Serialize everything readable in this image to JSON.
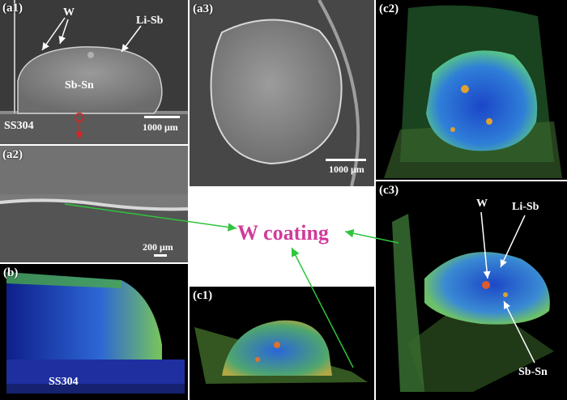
{
  "panels": {
    "a1": {
      "label": "(a1)",
      "w": "W",
      "lisb": "Li-Sb",
      "sbsn": "Sb-Sn",
      "ss": "SS304",
      "scale": "1000 μm"
    },
    "a2": {
      "label": "(a2)",
      "scale": "200 μm"
    },
    "a3": {
      "label": "(a3)",
      "scale": "1000 μm"
    },
    "b": {
      "label": "(b)",
      "ss": "SS304"
    },
    "c1": {
      "label": "(c1)"
    },
    "c2": {
      "label": "(c2)"
    },
    "c3": {
      "label": "(c3)",
      "w": "W",
      "lisb": "Li-Sb",
      "sbsn": "Sb-Sn"
    }
  },
  "center": {
    "title": "W coating"
  },
  "colors": {
    "title": "#d13b9a",
    "arrow_green": "#2fc43c",
    "arrow_red": "#e02020"
  }
}
